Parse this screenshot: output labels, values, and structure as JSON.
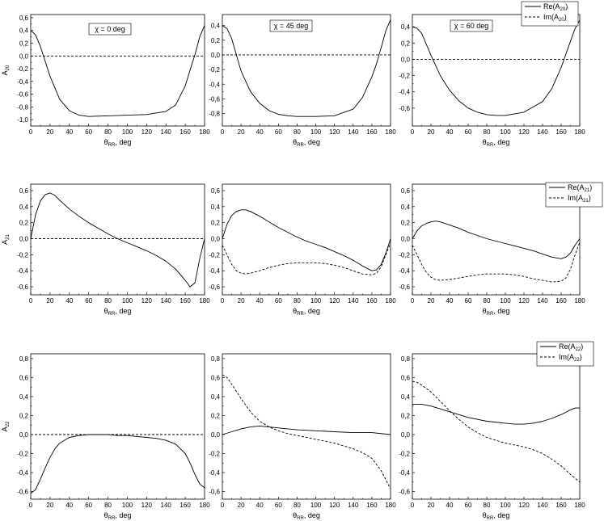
{
  "chart_data": [
    {
      "type": "line",
      "panel_row": 1,
      "panel_col": 1,
      "annotation": "χ = 0 deg",
      "xlabel": "θ",
      "xlabel_sub": "RR",
      "xlabel_suffix": ", deg",
      "ylabel": "A",
      "ylabel_sub": "20",
      "xlim": [
        0,
        180
      ],
      "ylim": [
        -1.1,
        0.65
      ],
      "xticks": [
        0,
        20,
        40,
        60,
        80,
        100,
        120,
        140,
        160,
        180
      ],
      "yticks": [
        0.6,
        0.4,
        0.2,
        0.0,
        -0.2,
        -0.4,
        -0.6,
        -0.8,
        -1.0
      ],
      "ytick_labels": [
        "0,6",
        "0,4",
        "0,2",
        "0,0",
        "-0,2",
        "-0,4",
        "-0,6",
        "-0,8",
        "-1,0"
      ],
      "series": [
        {
          "style": "solid",
          "x": [
            0,
            5,
            10,
            20,
            30,
            40,
            50,
            60,
            80,
            100,
            120,
            140,
            150,
            160,
            165,
            170,
            175,
            180
          ],
          "y": [
            0.4,
            0.33,
            0.15,
            -0.32,
            -0.68,
            -0.86,
            -0.93,
            -0.95,
            -0.94,
            -0.93,
            -0.92,
            -0.87,
            -0.77,
            -0.47,
            -0.22,
            0.02,
            0.3,
            0.48
          ]
        },
        {
          "style": "dashed",
          "x": [
            0,
            180
          ],
          "y": [
            0,
            0
          ]
        }
      ],
      "legend": null
    },
    {
      "type": "line",
      "panel_row": 1,
      "panel_col": 2,
      "annotation": "χ = 45 deg",
      "xlabel": "θ",
      "xlabel_sub": "RR",
      "xlabel_suffix": ", deg",
      "ylabel": "",
      "ylabel_sub": "",
      "xlim": [
        0,
        180
      ],
      "ylim": [
        -0.97,
        0.55
      ],
      "xticks": [
        0,
        20,
        40,
        60,
        80,
        100,
        120,
        140,
        160,
        180
      ],
      "yticks": [
        0.4,
        0.2,
        0.0,
        -0.2,
        -0.4,
        -0.6,
        -0.8
      ],
      "ytick_labels": [
        "0,4",
        "0,2",
        "0,0",
        "-0,2",
        "-0,4",
        "-0,6",
        "-0,8"
      ],
      "series": [
        {
          "style": "solid",
          "x": [
            0,
            5,
            10,
            20,
            30,
            40,
            50,
            60,
            70,
            80,
            100,
            120,
            140,
            150,
            160,
            165,
            170,
            175,
            180
          ],
          "y": [
            0.4,
            0.36,
            0.22,
            -0.22,
            -0.5,
            -0.66,
            -0.76,
            -0.81,
            -0.83,
            -0.84,
            -0.84,
            -0.83,
            -0.74,
            -0.58,
            -0.3,
            -0.12,
            0.1,
            0.33,
            0.48
          ]
        },
        {
          "style": "dashed",
          "x": [
            0,
            180
          ],
          "y": [
            0,
            0
          ]
        }
      ],
      "legend": null
    },
    {
      "type": "line",
      "panel_row": 1,
      "panel_col": 3,
      "annotation": "χ = 60 deg",
      "xlabel": "θ",
      "xlabel_sub": "RR",
      "xlabel_suffix": ", deg",
      "ylabel": "",
      "ylabel_sub": "",
      "xlim": [
        0,
        180
      ],
      "ylim": [
        -0.82,
        0.55
      ],
      "xticks": [
        0,
        20,
        40,
        60,
        80,
        100,
        120,
        140,
        160,
        180
      ],
      "yticks": [
        0.4,
        0.2,
        0.0,
        -0.2,
        -0.4,
        -0.6
      ],
      "ytick_labels": [
        "0,4",
        "0,2",
        "0,0",
        "-0,2",
        "-0,4",
        "-0,6"
      ],
      "series": [
        {
          "style": "solid",
          "x": [
            0,
            5,
            10,
            20,
            30,
            40,
            50,
            60,
            70,
            80,
            90,
            100,
            120,
            140,
            150,
            160,
            170,
            175,
            180
          ],
          "y": [
            0.4,
            0.38,
            0.32,
            0.05,
            -0.2,
            -0.38,
            -0.51,
            -0.6,
            -0.65,
            -0.68,
            -0.69,
            -0.69,
            -0.65,
            -0.52,
            -0.36,
            -0.1,
            0.22,
            0.38,
            0.48
          ]
        },
        {
          "style": "dashed",
          "x": [
            0,
            180
          ],
          "y": [
            0,
            0
          ]
        }
      ],
      "legend": {
        "entries": [
          {
            "style": "solid",
            "label": "Re(A",
            "sub": "20",
            "close": ")"
          },
          {
            "style": "dashed",
            "label": "Im(A",
            "sub": "20",
            "close": ")"
          }
        ]
      }
    },
    {
      "type": "line",
      "panel_row": 2,
      "panel_col": 1,
      "annotation": "",
      "xlabel": "θ",
      "xlabel_sub": "RR",
      "xlabel_suffix": ", deg",
      "ylabel": "A",
      "ylabel_sub": "21",
      "xlim": [
        0,
        180
      ],
      "ylim": [
        -0.7,
        0.68
      ],
      "xticks": [
        0,
        20,
        40,
        60,
        80,
        100,
        120,
        140,
        160,
        180
      ],
      "yticks": [
        0.6,
        0.4,
        0.2,
        0.0,
        -0.2,
        -0.4,
        -0.6
      ],
      "ytick_labels": [
        "0,6",
        "0,4",
        "0,2",
        "0,0",
        "-0,2",
        "-0,4",
        "-0,6"
      ],
      "series": [
        {
          "style": "solid",
          "x": [
            0,
            5,
            10,
            15,
            20,
            25,
            30,
            40,
            50,
            60,
            70,
            80,
            90,
            100,
            110,
            120,
            130,
            140,
            150,
            160,
            165,
            170,
            175,
            180
          ],
          "y": [
            0.0,
            0.3,
            0.47,
            0.55,
            0.57,
            0.54,
            0.48,
            0.37,
            0.28,
            0.2,
            0.13,
            0.06,
            0.0,
            -0.05,
            -0.1,
            -0.15,
            -0.21,
            -0.28,
            -0.38,
            -0.52,
            -0.6,
            -0.55,
            -0.25,
            0.0
          ]
        },
        {
          "style": "dashed",
          "x": [
            0,
            180
          ],
          "y": [
            0,
            0
          ]
        }
      ],
      "legend": null
    },
    {
      "type": "line",
      "panel_row": 2,
      "panel_col": 2,
      "annotation": "",
      "xlabel": "θ",
      "xlabel_sub": "RR",
      "xlabel_suffix": ", deg",
      "ylabel": "",
      "ylabel_sub": "",
      "xlim": [
        0,
        180
      ],
      "ylim": [
        -0.7,
        0.68
      ],
      "xticks": [
        0,
        20,
        40,
        60,
        80,
        100,
        120,
        140,
        160,
        180
      ],
      "yticks": [
        0.6,
        0.4,
        0.2,
        0.0,
        -0.2,
        -0.4,
        -0.6
      ],
      "ytick_labels": [
        "0,6",
        "0,4",
        "0,2",
        "0,0",
        "-0,2",
        "-0,4",
        "-0,6"
      ],
      "series": [
        {
          "style": "solid",
          "x": [
            0,
            5,
            10,
            15,
            20,
            25,
            30,
            40,
            50,
            60,
            70,
            80,
            90,
            100,
            110,
            120,
            130,
            140,
            150,
            160,
            165,
            170,
            175,
            180
          ],
          "y": [
            0.0,
            0.18,
            0.29,
            0.34,
            0.36,
            0.36,
            0.34,
            0.28,
            0.21,
            0.14,
            0.08,
            0.02,
            -0.03,
            -0.07,
            -0.11,
            -0.16,
            -0.21,
            -0.27,
            -0.34,
            -0.4,
            -0.39,
            -0.32,
            -0.18,
            0.0
          ]
        },
        {
          "style": "dashed",
          "x": [
            0,
            5,
            10,
            15,
            20,
            25,
            30,
            40,
            50,
            60,
            70,
            80,
            90,
            100,
            110,
            120,
            130,
            140,
            150,
            160,
            165,
            170,
            175,
            180
          ],
          "y": [
            -0.08,
            -0.2,
            -0.32,
            -0.4,
            -0.43,
            -0.44,
            -0.43,
            -0.4,
            -0.36,
            -0.33,
            -0.31,
            -0.3,
            -0.3,
            -0.3,
            -0.31,
            -0.33,
            -0.36,
            -0.4,
            -0.44,
            -0.45,
            -0.43,
            -0.35,
            -0.2,
            -0.05
          ]
        }
      ],
      "legend": null
    },
    {
      "type": "line",
      "panel_row": 2,
      "panel_col": 3,
      "annotation": "",
      "xlabel": "θ",
      "xlabel_sub": "RR",
      "xlabel_suffix": ", deg",
      "ylabel": "",
      "ylabel_sub": "",
      "xlim": [
        0,
        180
      ],
      "ylim": [
        -0.7,
        0.68
      ],
      "xticks": [
        0,
        20,
        40,
        60,
        80,
        100,
        120,
        140,
        160,
        180
      ],
      "yticks": [
        0.6,
        0.4,
        0.2,
        0.0,
        -0.2,
        -0.4,
        -0.6
      ],
      "ytick_labels": [
        "0,6",
        "0,4",
        "0,2",
        "0,0",
        "-0,2",
        "-0,4",
        "-0,6"
      ],
      "series": [
        {
          "style": "solid",
          "x": [
            0,
            5,
            10,
            15,
            20,
            25,
            30,
            40,
            50,
            60,
            70,
            80,
            90,
            100,
            110,
            120,
            130,
            140,
            150,
            160,
            165,
            170,
            175,
            180
          ],
          "y": [
            0.0,
            0.1,
            0.16,
            0.19,
            0.21,
            0.22,
            0.21,
            0.17,
            0.13,
            0.08,
            0.04,
            0.0,
            -0.03,
            -0.06,
            -0.09,
            -0.12,
            -0.15,
            -0.19,
            -0.23,
            -0.25,
            -0.23,
            -0.18,
            -0.08,
            0.0
          ]
        },
        {
          "style": "dashed",
          "x": [
            0,
            5,
            10,
            15,
            20,
            25,
            30,
            40,
            50,
            60,
            70,
            80,
            90,
            100,
            110,
            120,
            130,
            140,
            150,
            160,
            165,
            170,
            175,
            180
          ],
          "y": [
            -0.08,
            -0.2,
            -0.32,
            -0.42,
            -0.48,
            -0.51,
            -0.52,
            -0.51,
            -0.49,
            -0.47,
            -0.45,
            -0.44,
            -0.44,
            -0.44,
            -0.45,
            -0.47,
            -0.5,
            -0.52,
            -0.54,
            -0.53,
            -0.49,
            -0.38,
            -0.2,
            -0.04
          ]
        }
      ],
      "legend": {
        "entries": [
          {
            "style": "solid",
            "label": "Re(A",
            "sub": "21",
            "close": ")"
          },
          {
            "style": "dashed",
            "label": "Im(A",
            "sub": "21",
            "close": ")"
          }
        ]
      }
    },
    {
      "type": "line",
      "panel_row": 3,
      "panel_col": 1,
      "annotation": "",
      "xlabel": "θ",
      "xlabel_sub": "RR",
      "xlabel_suffix": ", deg",
      "ylabel": "A",
      "ylabel_sub": "22",
      "xlim": [
        0,
        180
      ],
      "ylim": [
        -0.68,
        0.85
      ],
      "xticks": [
        0,
        20,
        40,
        60,
        80,
        100,
        120,
        140,
        160,
        180
      ],
      "yticks": [
        0.8,
        0.6,
        0.4,
        0.2,
        0.0,
        -0.2,
        -0.4,
        -0.6
      ],
      "ytick_labels": [
        "0,8",
        "0,6",
        "0,4",
        "0,2",
        "0,0",
        "-0,2",
        "-0,4",
        "-0,6"
      ],
      "series": [
        {
          "style": "solid",
          "x": [
            0,
            5,
            10,
            15,
            20,
            25,
            30,
            40,
            50,
            60,
            70,
            80,
            90,
            100,
            110,
            120,
            130,
            140,
            150,
            160,
            165,
            170,
            175,
            180
          ],
          "y": [
            -0.62,
            -0.58,
            -0.47,
            -0.35,
            -0.24,
            -0.15,
            -0.09,
            -0.03,
            -0.01,
            0.0,
            0.0,
            0.0,
            -0.01,
            -0.01,
            -0.02,
            -0.03,
            -0.04,
            -0.06,
            -0.1,
            -0.2,
            -0.3,
            -0.42,
            -0.52,
            -0.56
          ]
        },
        {
          "style": "dashed",
          "x": [
            0,
            180
          ],
          "y": [
            0,
            0
          ]
        }
      ],
      "legend": null
    },
    {
      "type": "line",
      "panel_row": 3,
      "panel_col": 2,
      "annotation": "",
      "xlabel": "θ",
      "xlabel_sub": "RR",
      "xlabel_suffix": ", deg",
      "ylabel": "",
      "ylabel_sub": "",
      "xlim": [
        0,
        180
      ],
      "ylim": [
        -0.68,
        0.85
      ],
      "xticks": [
        0,
        20,
        40,
        60,
        80,
        100,
        120,
        140,
        160,
        180
      ],
      "yticks": [
        0.8,
        0.6,
        0.4,
        0.2,
        0.0,
        -0.2,
        -0.4,
        -0.6
      ],
      "ytick_labels": [
        "0,8",
        "0,6",
        "0,4",
        "0,2",
        "0,0",
        "-0,2",
        "-0,4",
        "-0,6"
      ],
      "series": [
        {
          "style": "solid",
          "x": [
            0,
            10,
            20,
            30,
            40,
            50,
            60,
            80,
            100,
            120,
            140,
            160,
            180
          ],
          "y": [
            0.0,
            0.03,
            0.06,
            0.08,
            0.09,
            0.08,
            0.07,
            0.05,
            0.04,
            0.03,
            0.02,
            0.02,
            0.0
          ]
        },
        {
          "style": "dashed",
          "x": [
            0,
            5,
            10,
            20,
            30,
            40,
            50,
            60,
            70,
            80,
            90,
            100,
            110,
            120,
            130,
            140,
            150,
            160,
            170,
            180
          ],
          "y": [
            0.63,
            0.6,
            0.53,
            0.38,
            0.24,
            0.14,
            0.08,
            0.04,
            0.01,
            -0.01,
            -0.03,
            -0.05,
            -0.07,
            -0.09,
            -0.12,
            -0.15,
            -0.19,
            -0.25,
            -0.38,
            -0.57
          ]
        }
      ],
      "legend": null
    },
    {
      "type": "line",
      "panel_row": 3,
      "panel_col": 3,
      "annotation": "",
      "xlabel": "θ",
      "xlabel_sub": "RR",
      "xlabel_suffix": ", deg",
      "ylabel": "",
      "ylabel_sub": "",
      "xlim": [
        0,
        180
      ],
      "ylim": [
        -0.68,
        0.85
      ],
      "xticks": [
        0,
        20,
        40,
        60,
        80,
        100,
        120,
        140,
        160,
        180
      ],
      "yticks": [
        0.8,
        0.6,
        0.4,
        0.2,
        0.0,
        -0.2,
        -0.4,
        -0.6
      ],
      "ytick_labels": [
        "0,8",
        "0,6",
        "0,4",
        "0,2",
        "0,0",
        "-0,2",
        "-0,4",
        "-0,6"
      ],
      "series": [
        {
          "style": "solid",
          "x": [
            0,
            10,
            20,
            30,
            40,
            60,
            80,
            100,
            110,
            120,
            130,
            140,
            150,
            160,
            170,
            175,
            180
          ],
          "y": [
            0.32,
            0.32,
            0.3,
            0.27,
            0.24,
            0.18,
            0.14,
            0.12,
            0.11,
            0.11,
            0.12,
            0.14,
            0.17,
            0.21,
            0.26,
            0.28,
            0.28
          ]
        },
        {
          "style": "dashed",
          "x": [
            0,
            5,
            10,
            20,
            30,
            40,
            50,
            60,
            70,
            80,
            90,
            100,
            110,
            120,
            130,
            140,
            150,
            160,
            170,
            180
          ],
          "y": [
            0.56,
            0.55,
            0.52,
            0.45,
            0.35,
            0.25,
            0.16,
            0.08,
            0.02,
            -0.03,
            -0.06,
            -0.09,
            -0.11,
            -0.13,
            -0.16,
            -0.2,
            -0.26,
            -0.33,
            -0.42,
            -0.5
          ]
        }
      ],
      "legend": {
        "entries": [
          {
            "style": "solid",
            "label": "Re(A",
            "sub": "22",
            "close": ")"
          },
          {
            "style": "dashed",
            "label": "Im(A",
            "sub": "22",
            "close": ")"
          }
        ]
      }
    }
  ]
}
